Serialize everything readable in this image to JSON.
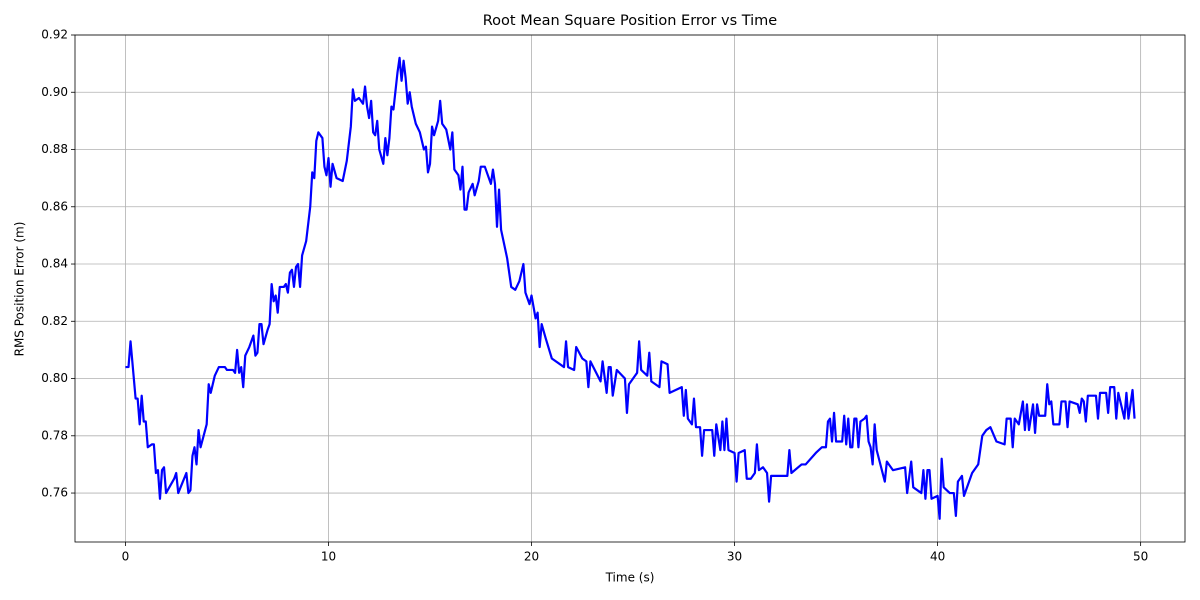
{
  "chart_data": {
    "type": "line",
    "title": "Root Mean Square Position Error vs Time",
    "x_label": "Time (s)",
    "y_label": "RMS Position Error (m)",
    "color": "#0000ff",
    "grid": true,
    "xlim": [
      -2.485,
      52.185
    ],
    "ylim": [
      0.7429,
      0.92
    ],
    "xticks": [
      0,
      10,
      20,
      30,
      40,
      50
    ],
    "yticks": [
      0.76,
      0.78,
      {
        "value": 0.8,
        "label": "0.80"
      },
      0.82,
      0.84,
      0.86,
      0.88,
      {
        "value": 0.9,
        "label": "0.90"
      },
      0.92
    ],
    "x": [
      0,
      0.15,
      0.25,
      0.5,
      0.6,
      0.7,
      0.8,
      0.9,
      1.0,
      1.1,
      1.3,
      1.4,
      1.5,
      1.6,
      1.7,
      1.8,
      1.9,
      2.0,
      2.4,
      2.5,
      2.6,
      3.0,
      3.1,
      3.2,
      3.3,
      3.4,
      3.5,
      3.6,
      3.7,
      4.0,
      4.1,
      4.2,
      4.4,
      4.6,
      4.9,
      5.0,
      5.2,
      5.3,
      5.4,
      5.5,
      5.6,
      5.7,
      5.8,
      5.9,
      6.1,
      6.3,
      6.4,
      6.5,
      6.6,
      6.7,
      6.8,
      7.0,
      7.1,
      7.2,
      7.3,
      7.4,
      7.5,
      7.6,
      7.8,
      7.9,
      8.0,
      8.1,
      8.2,
      8.3,
      8.4,
      8.5,
      8.6,
      8.7,
      8.9,
      9.1,
      9.2,
      9.3,
      9.4,
      9.5,
      9.7,
      9.8,
      9.9,
      10.0,
      10.1,
      10.2,
      10.4,
      10.7,
      10.9,
      11.1,
      11.2,
      11.3,
      11.5,
      11.7,
      11.8,
      11.9,
      12.0,
      12.1,
      12.2,
      12.3,
      12.4,
      12.5,
      12.7,
      12.8,
      12.9,
      13.0,
      13.1,
      13.2,
      13.4,
      13.5,
      13.6,
      13.7,
      13.8,
      13.9,
      14.0,
      14.1,
      14.3,
      14.5,
      14.7,
      14.8,
      14.9,
      15.0,
      15.1,
      15.2,
      15.4,
      15.5,
      15.6,
      15.8,
      16.0,
      16.1,
      16.2,
      16.4,
      16.5,
      16.6,
      16.7,
      16.8,
      16.9,
      17.1,
      17.2,
      17.4,
      17.5,
      17.7,
      18.0,
      18.1,
      18.2,
      18.3,
      18.4,
      18.5,
      18.8,
      19.0,
      19.2,
      19.4,
      19.6,
      19.7,
      19.9,
      20.0,
      20.2,
      20.3,
      20.4,
      20.5,
      20.7,
      21.0,
      21.6,
      21.7,
      21.8,
      22.1,
      22.2,
      22.5,
      22.7,
      22.8,
      22.9,
      23.4,
      23.5,
      23.7,
      23.8,
      23.9,
      24.0,
      24.2,
      24.6,
      24.7,
      24.8,
      25.2,
      25.3,
      25.4,
      25.7,
      25.8,
      25.9,
      26.3,
      26.4,
      26.7,
      26.8,
      27.4,
      27.5,
      27.6,
      27.7,
      27.9,
      28.0,
      28.1,
      28.3,
      28.4,
      28.5,
      28.9,
      29.0,
      29.1,
      29.3,
      29.4,
      29.5,
      29.6,
      29.7,
      30.0,
      30.1,
      30.2,
      30.5,
      30.6,
      30.8,
      31.0,
      31.1,
      31.2,
      31.4,
      31.6,
      31.7,
      31.8,
      32.0,
      32.6,
      32.7,
      32.8,
      33.3,
      33.5,
      34.0,
      34.3,
      34.5,
      34.6,
      34.7,
      34.8,
      34.9,
      35.0,
      35.3,
      35.4,
      35.5,
      35.6,
      35.7,
      35.8,
      35.9,
      36.0,
      36.1,
      36.2,
      36.4,
      36.5,
      36.6,
      36.7,
      36.8,
      36.9,
      37.0,
      37.4,
      37.5,
      37.8,
      38.4,
      38.5,
      38.7,
      38.8,
      39.2,
      39.3,
      39.4,
      39.5,
      39.6,
      39.7,
      40.0,
      40.1,
      40.2,
      40.3,
      40.6,
      40.8,
      40.9,
      41.0,
      41.2,
      41.3,
      41.7,
      42.0,
      42.2,
      42.4,
      42.6,
      42.9,
      43.3,
      43.4,
      43.6,
      43.7,
      43.8,
      44.0,
      44.2,
      44.3,
      44.4,
      44.5,
      44.7,
      44.8,
      44.9,
      45.0,
      45.3,
      45.4,
      45.5,
      45.6,
      45.7,
      46.0,
      46.1,
      46.3,
      46.4,
      46.5,
      46.9,
      47.0,
      47.1,
      47.2,
      47.3,
      47.4,
      47.8,
      47.9,
      48.0,
      48.3,
      48.4,
      48.5,
      48.7,
      48.8,
      48.9,
      49.1,
      49.2,
      49.3,
      49.4,
      49.6,
      49.7
    ],
    "values": [
      0.804,
      0.804,
      0.813,
      0.793,
      0.793,
      0.784,
      0.794,
      0.785,
      0.785,
      0.776,
      0.777,
      0.777,
      0.767,
      0.768,
      0.758,
      0.768,
      0.769,
      0.76,
      0.765,
      0.767,
      0.76,
      0.767,
      0.76,
      0.761,
      0.773,
      0.776,
      0.77,
      0.782,
      0.776,
      0.784,
      0.798,
      0.795,
      0.801,
      0.804,
      0.804,
      0.803,
      0.803,
      0.803,
      0.802,
      0.81,
      0.802,
      0.804,
      0.797,
      0.808,
      0.811,
      0.815,
      0.808,
      0.809,
      0.819,
      0.819,
      0.812,
      0.817,
      0.819,
      0.833,
      0.827,
      0.829,
      0.823,
      0.832,
      0.832,
      0.833,
      0.83,
      0.837,
      0.838,
      0.832,
      0.839,
      0.84,
      0.832,
      0.843,
      0.848,
      0.86,
      0.872,
      0.87,
      0.883,
      0.886,
      0.884,
      0.874,
      0.871,
      0.877,
      0.867,
      0.875,
      0.87,
      0.869,
      0.876,
      0.888,
      0.901,
      0.897,
      0.898,
      0.896,
      0.902,
      0.895,
      0.891,
      0.897,
      0.886,
      0.885,
      0.89,
      0.88,
      0.875,
      0.884,
      0.878,
      0.884,
      0.895,
      0.894,
      0.907,
      0.912,
      0.904,
      0.911,
      0.905,
      0.896,
      0.9,
      0.895,
      0.889,
      0.886,
      0.88,
      0.881,
      0.872,
      0.875,
      0.888,
      0.885,
      0.89,
      0.897,
      0.889,
      0.887,
      0.88,
      0.886,
      0.873,
      0.871,
      0.866,
      0.874,
      0.859,
      0.859,
      0.865,
      0.868,
      0.864,
      0.869,
      0.874,
      0.874,
      0.868,
      0.873,
      0.868,
      0.853,
      0.866,
      0.852,
      0.842,
      0.832,
      0.831,
      0.834,
      0.84,
      0.83,
      0.826,
      0.829,
      0.821,
      0.823,
      0.811,
      0.819,
      0.814,
      0.807,
      0.804,
      0.813,
      0.804,
      0.803,
      0.811,
      0.807,
      0.806,
      0.797,
      0.806,
      0.799,
      0.806,
      0.795,
      0.804,
      0.804,
      0.794,
      0.803,
      0.8,
      0.788,
      0.798,
      0.802,
      0.813,
      0.803,
      0.801,
      0.809,
      0.799,
      0.797,
      0.806,
      0.805,
      0.795,
      0.797,
      0.787,
      0.796,
      0.786,
      0.784,
      0.793,
      0.783,
      0.783,
      0.773,
      0.782,
      0.782,
      0.773,
      0.784,
      0.775,
      0.785,
      0.775,
      0.786,
      0.775,
      0.774,
      0.764,
      0.774,
      0.775,
      0.765,
      0.765,
      0.767,
      0.777,
      0.768,
      0.769,
      0.767,
      0.757,
      0.766,
      0.766,
      0.766,
      0.775,
      0.767,
      0.77,
      0.77,
      0.774,
      0.776,
      0.776,
      0.785,
      0.786,
      0.778,
      0.788,
      0.778,
      0.778,
      0.787,
      0.777,
      0.786,
      0.776,
      0.776,
      0.786,
      0.786,
      0.776,
      0.785,
      0.786,
      0.787,
      0.778,
      0.776,
      0.77,
      0.784,
      0.775,
      0.764,
      0.771,
      0.768,
      0.769,
      0.76,
      0.771,
      0.762,
      0.76,
      0.768,
      0.758,
      0.768,
      0.768,
      0.758,
      0.759,
      0.751,
      0.772,
      0.762,
      0.76,
      0.76,
      0.752,
      0.764,
      0.766,
      0.759,
      0.767,
      0.77,
      0.78,
      0.782,
      0.783,
      0.778,
      0.777,
      0.786,
      0.786,
      0.776,
      0.786,
      0.784,
      0.792,
      0.782,
      0.791,
      0.782,
      0.791,
      0.781,
      0.791,
      0.787,
      0.787,
      0.798,
      0.791,
      0.792,
      0.784,
      0.784,
      0.792,
      0.792,
      0.783,
      0.792,
      0.791,
      0.788,
      0.793,
      0.792,
      0.785,
      0.794,
      0.794,
      0.786,
      0.795,
      0.795,
      0.788,
      0.797,
      0.797,
      0.786,
      0.795,
      0.789,
      0.786,
      0.795,
      0.786,
      0.796,
      0.786
    ]
  }
}
